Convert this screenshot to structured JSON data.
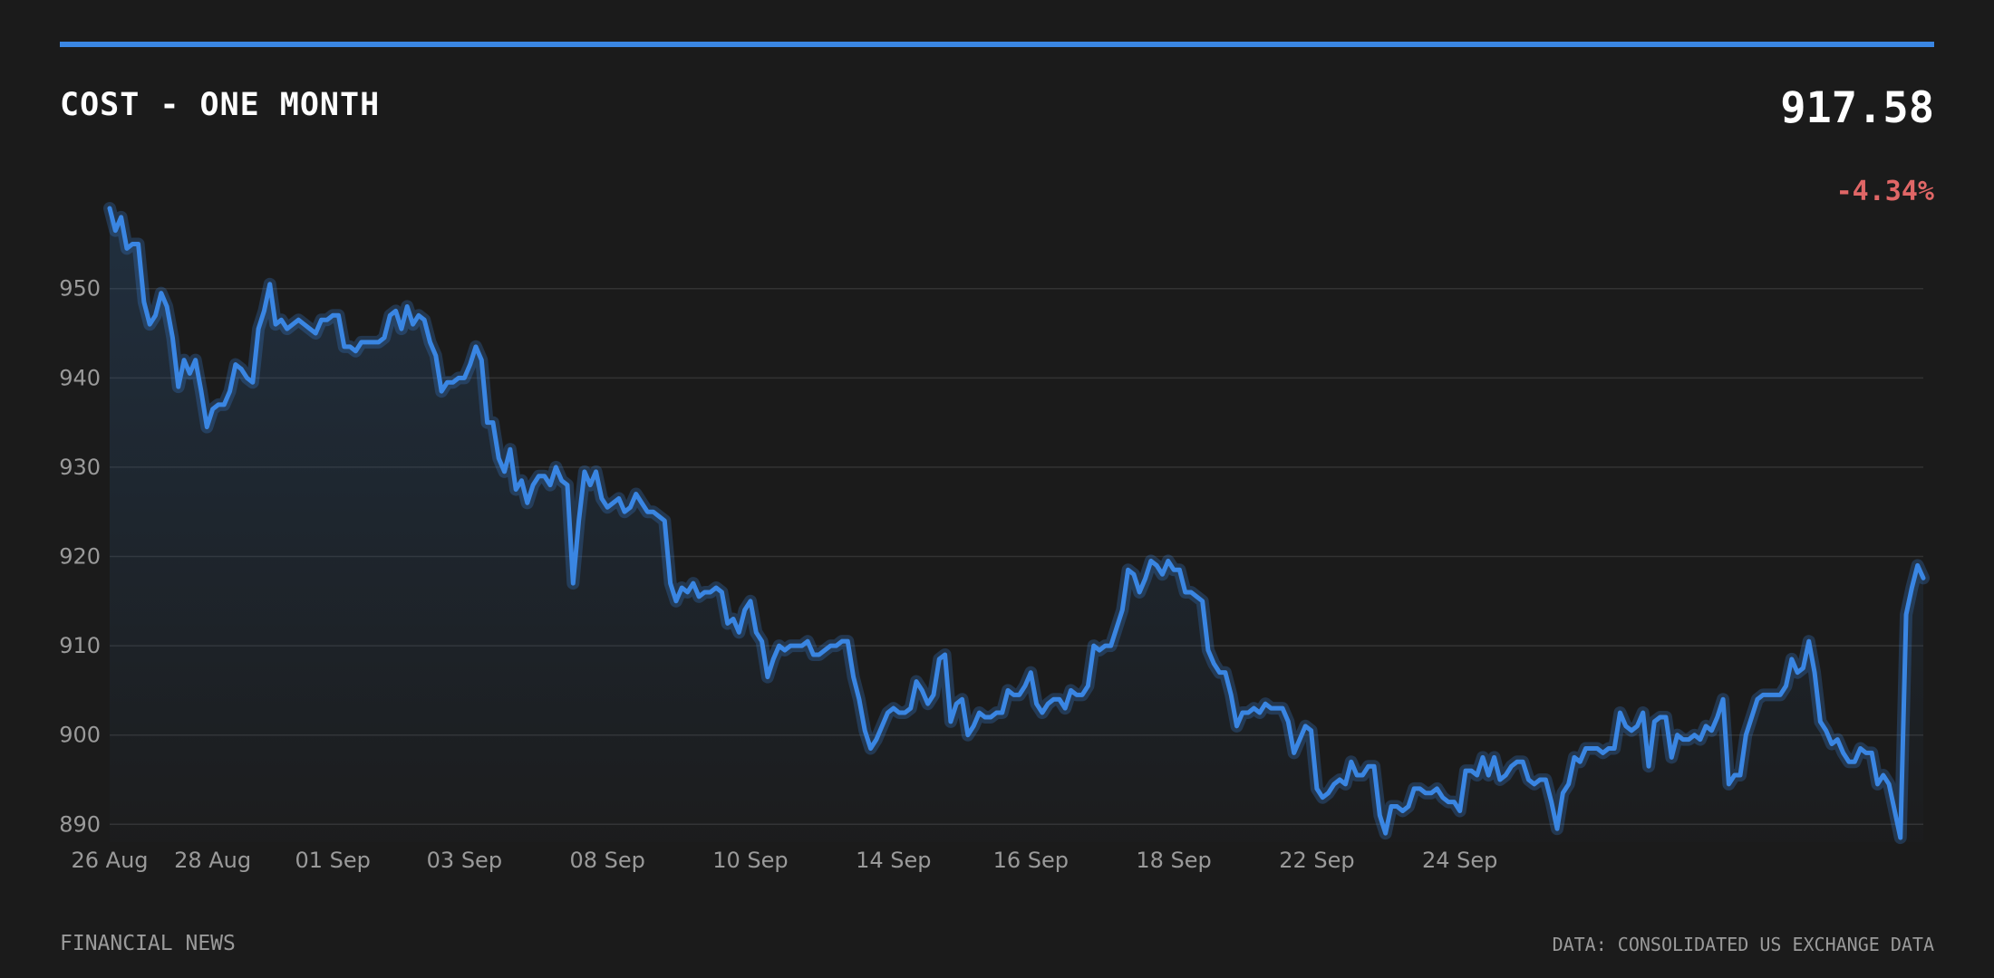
{
  "header": {
    "title": "COST - ONE MONTH",
    "price": "917.58",
    "change": "-4.34%"
  },
  "footer": {
    "source_left": "FINANCIAL NEWS",
    "source_right": "DATA: CONSOLIDATED US EXCHANGE DATA"
  },
  "colors": {
    "background": "#1b1b1b",
    "accent": "#3a86e3",
    "negative": "#e06666",
    "grid": "#333333",
    "tick_text": "#9a9a9a"
  },
  "chart_data": {
    "type": "line",
    "title": "COST - ONE MONTH",
    "ylim": [
      888,
      959
    ],
    "yticks": [
      890,
      900,
      910,
      920,
      930,
      940,
      950
    ],
    "grid": true,
    "x_tick_labels": [
      {
        "label": "26 Aug",
        "index": 0
      },
      {
        "label": "28 Aug",
        "index": 18
      },
      {
        "label": "01 Sep",
        "index": 39
      },
      {
        "label": "03 Sep",
        "index": 62
      },
      {
        "label": "08 Sep",
        "index": 87
      },
      {
        "label": "10 Sep",
        "index": 112
      },
      {
        "label": "14 Sep",
        "index": 137
      },
      {
        "label": "16 Sep",
        "index": 161
      },
      {
        "label": "18 Sep",
        "index": 186
      },
      {
        "label": "22 Sep",
        "index": 211
      },
      {
        "label": "24 Sep",
        "index": 236
      }
    ],
    "series": [
      {
        "values": [
          959,
          956.5,
          958,
          954.5,
          955,
          955,
          948.5,
          946,
          947,
          949.5,
          948,
          944.5,
          939,
          942,
          940.5,
          942,
          938.5,
          934.5,
          936.5,
          937,
          937,
          938.5,
          941.5,
          941,
          940,
          939.5,
          945.5,
          947.5,
          950.5,
          946,
          946.5,
          945.5,
          946,
          946.5,
          946,
          945.5,
          945,
          946.5,
          946.5,
          947,
          947,
          943.5,
          943.5,
          943,
          944,
          944,
          944,
          944,
          944.5,
          947,
          947.5,
          945.5,
          948,
          946,
          947,
          946.5,
          944,
          942.5,
          938.5,
          939.5,
          939.5,
          940,
          940,
          941.5,
          943.5,
          942,
          935,
          935,
          931,
          929.5,
          932,
          927.5,
          928.5,
          926,
          928,
          929,
          929,
          928,
          930,
          928.5,
          928,
          917,
          924,
          929.5,
          928,
          929.5,
          926.5,
          925.5,
          926,
          926.5,
          925,
          925.5,
          927,
          926,
          925,
          925,
          924.5,
          924,
          917,
          915,
          916.5,
          916,
          917,
          915.5,
          916,
          916,
          916.5,
          916,
          912.5,
          913,
          911.5,
          914,
          915,
          911.5,
          910.5,
          906.5,
          908.5,
          910,
          909.5,
          910,
          910,
          910,
          910.5,
          909,
          909,
          909.5,
          910,
          910,
          910.5,
          910.5,
          906.5,
          904,
          900.5,
          898.5,
          899.5,
          901,
          902.5,
          903,
          902.5,
          902.5,
          903,
          906,
          905,
          903.5,
          904.5,
          908.5,
          909,
          901.5,
          903.5,
          904,
          900,
          901,
          902.5,
          902,
          902,
          902.5,
          902.5,
          905,
          904.5,
          904.5,
          905.5,
          907,
          903.5,
          902.5,
          903.5,
          904,
          904,
          903,
          905,
          904.5,
          904.5,
          905.5,
          910,
          909.5,
          910,
          910,
          912,
          914,
          918.5,
          918,
          916,
          917.5,
          919.5,
          919,
          918,
          919.5,
          918.5,
          918.5,
          916,
          916,
          915.5,
          915,
          909.5,
          908,
          907,
          907,
          904.5,
          901,
          902.5,
          902.5,
          903,
          902.5,
          903.5,
          903,
          903,
          903,
          901.5,
          898,
          899.5,
          901,
          900.5,
          894,
          893,
          893.5,
          894.5,
          895,
          894.5,
          897,
          895.5,
          895.5,
          896.5,
          896.5,
          891,
          889,
          892,
          892,
          891.5,
          892,
          894,
          894,
          893.5,
          893.5,
          894,
          893,
          892.5,
          892.5,
          891.5,
          896,
          896,
          895.5,
          897.5,
          895.5,
          897.5,
          895,
          895.5,
          896.5,
          897,
          897,
          895,
          894.5,
          895,
          895,
          892.5,
          889.5,
          893.5,
          894.5,
          897.5,
          897,
          898.5,
          898.5,
          898.5,
          898,
          898.5,
          898.5,
          902.5,
          901,
          900.5,
          901,
          902.5,
          896.5,
          901.5,
          902,
          902,
          897.5,
          900,
          899.5,
          899.5,
          900,
          899.5,
          901,
          900.5,
          902,
          904,
          894.5,
          895.5,
          895.5,
          900,
          902,
          904,
          904.5,
          904.5,
          904.5,
          904.5,
          905.5,
          908.5,
          907,
          907.5,
          910.5,
          907,
          901.5,
          900.5,
          899,
          899.5,
          898,
          897,
          897,
          898.5,
          898,
          898,
          894.5,
          895.5,
          894.5,
          891.5,
          888.5,
          913.5,
          916.5,
          919,
          917.58
        ]
      }
    ]
  }
}
